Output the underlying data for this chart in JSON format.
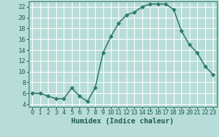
{
  "x": [
    0,
    1,
    2,
    3,
    4,
    5,
    6,
    7,
    8,
    9,
    10,
    11,
    12,
    13,
    14,
    15,
    16,
    17,
    18,
    19,
    20,
    21,
    22,
    23
  ],
  "y": [
    6,
    6,
    5.5,
    5,
    5,
    7,
    5.5,
    4.5,
    7,
    13.5,
    16.5,
    19,
    20.5,
    21,
    22,
    22.5,
    22.5,
    22.5,
    21.5,
    17.5,
    15,
    13.5,
    11,
    9.5
  ],
  "line_color": "#2d7a6a",
  "marker_color": "#2d7a6a",
  "bg_color": "#b8ddd8",
  "grid_color": "#ffffff",
  "axis_color": "#2d7a6a",
  "tick_label_color": "#1a5a50",
  "xlabel": "Humidex (Indice chaleur)",
  "xlim": [
    -0.5,
    23.5
  ],
  "ylim": [
    3.5,
    23.0
  ],
  "yticks": [
    4,
    6,
    8,
    10,
    12,
    14,
    16,
    18,
    20,
    22
  ],
  "xticks": [
    0,
    1,
    2,
    3,
    4,
    5,
    6,
    7,
    8,
    9,
    10,
    11,
    12,
    13,
    14,
    15,
    16,
    17,
    18,
    19,
    20,
    21,
    22,
    23
  ],
  "xlabel_fontsize": 7.5,
  "tick_fontsize": 6.5,
  "line_width": 1.2,
  "marker_size": 2.8
}
